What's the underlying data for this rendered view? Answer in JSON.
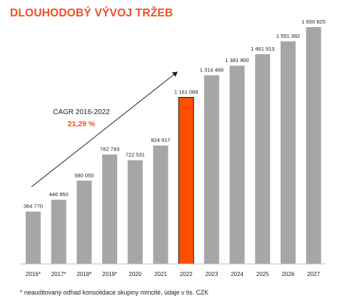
{
  "title": "DLOUHODOBÝ VÝVOJ TRŽEB",
  "footnote": "* neauditovaný odhad konsolidace skupiny mmcité, údaje v tis. CZK",
  "colors": {
    "title": "#f04e23",
    "bar": "#a6a6a6",
    "highlight": "#ff4f00",
    "highlight_border": "#1a1a1a",
    "cagr_value": "#f04e23",
    "axis": "#bfbfbf",
    "text": "#222222"
  },
  "annotation": {
    "label": "CAGR 2016-2022",
    "value": "21,29 %"
  },
  "chart_data": {
    "type": "bar",
    "title": "DLOUHODOBÝ VÝVOJ TRŽEB",
    "categories": [
      "2016*",
      "2017*",
      "2018*",
      "2019*",
      "2020",
      "2021",
      "2022",
      "2023",
      "2024",
      "2025",
      "2026",
      "2027"
    ],
    "values": [
      364770,
      446950,
      580050,
      762749,
      722531,
      824917,
      1161088,
      1314468,
      1381900,
      1461913,
      1551382,
      1650825
    ],
    "value_labels": [
      "364 770",
      "446 950",
      "580 050",
      "762 749",
      "722 531",
      "824 917",
      "1 161 088",
      "1 314 468",
      "1 381 900",
      "1 461 913",
      "1 551 382",
      "1 650 825"
    ],
    "highlight_category": "2022",
    "ylim": [
      0,
      1650825
    ],
    "grid": false,
    "legend": "none",
    "xlabel": "",
    "ylabel": ""
  }
}
